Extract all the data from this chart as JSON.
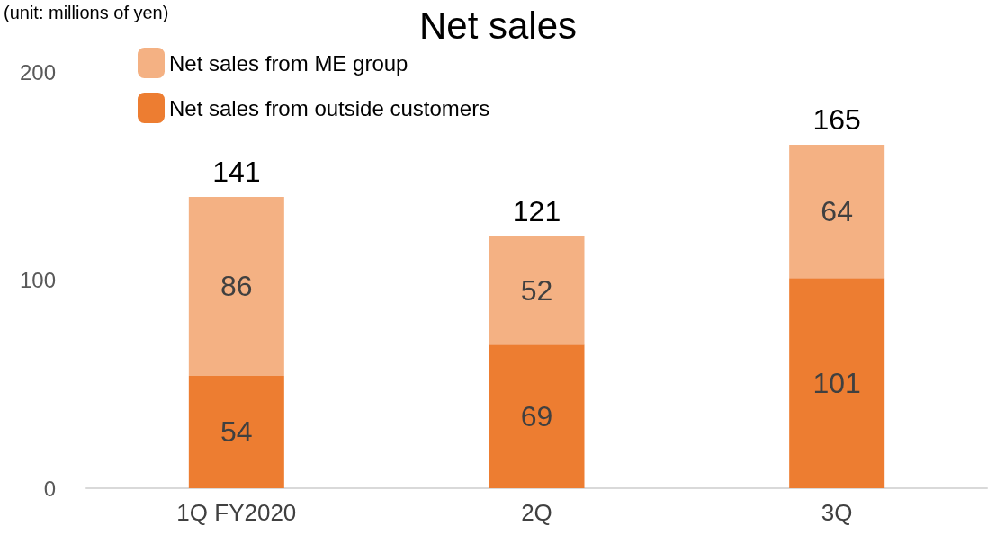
{
  "chart_data": {
    "type": "bar",
    "title": "Net sales",
    "annotations": [
      "(unit: millions of yen)"
    ],
    "categories": [
      "1Q FY2020",
      "2Q",
      "3Q"
    ],
    "series": [
      {
        "name": "Net sales from outside customers",
        "color": "#ed7d31",
        "values": [
          54,
          69,
          101
        ]
      },
      {
        "name": "Net sales from ME group",
        "color": "#f4b183",
        "values": [
          86,
          52,
          64
        ]
      }
    ],
    "stacked": true,
    "ylim": [
      0,
      200
    ],
    "yticks": [
      0,
      100,
      200
    ],
    "grid": false,
    "legend": "top left",
    "data_labels": true,
    "totals": [
      "141",
      "121",
      "165"
    ]
  }
}
